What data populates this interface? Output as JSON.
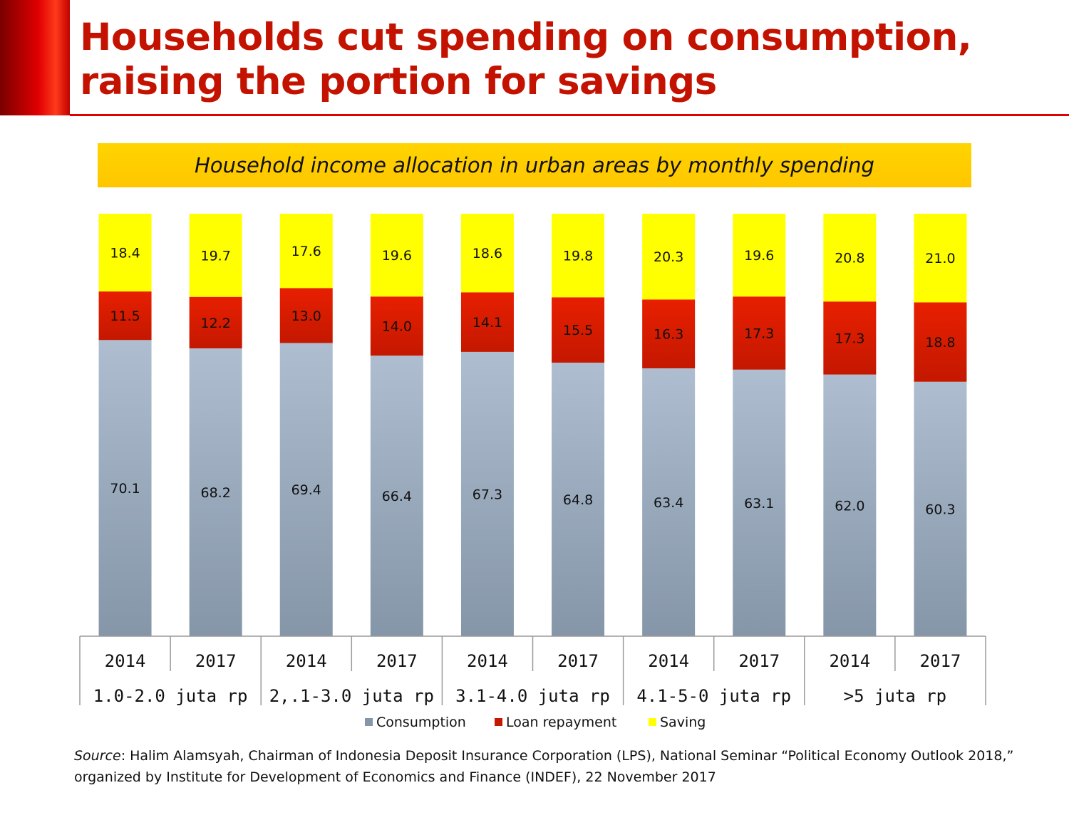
{
  "slide": {
    "title_line1": "Households cut spending on consumption,",
    "title_line2": "raising the portion for savings",
    "subtitle": "Household income allocation in urban areas by monthly spending",
    "source_label": "Source",
    "source_text": ": Halim Alamsyah, Chairman of Indonesia Deposit Insurance Corporation (LPS), National Seminar “Political Economy Outlook 2018,” organized by Institute for Development of Economics and Finance (INDEF), 22 November 2017"
  },
  "colors": {
    "title": "#c41200",
    "accent": "#e00000",
    "subtitle_band": "#ffc800",
    "consumption_top": "#aebdd0",
    "consumption_bottom": "#8596a8",
    "loan_top": "#e81f00",
    "loan_bottom": "#c41800",
    "saving": "#ffff00"
  },
  "chart_data": {
    "type": "bar",
    "stacked": true,
    "percent_stacked": true,
    "title": "Household income allocation in urban areas by monthly spending",
    "categories": [
      "2014",
      "2017",
      "2014",
      "2017",
      "2014",
      "2017",
      "2014",
      "2017",
      "2014",
      "2017"
    ],
    "groups": [
      {
        "label": "1.0-2.0 juta rp",
        "years": [
          "2014",
          "2017"
        ]
      },
      {
        "label": "2,.1-3.0 juta rp",
        "years": [
          "2014",
          "2017"
        ]
      },
      {
        "label": "3.1-4.0 juta rp",
        "years": [
          "2014",
          "2017"
        ]
      },
      {
        "label": "4.1-5-0 juta rp",
        "years": [
          "2014",
          "2017"
        ]
      },
      {
        "label": ">5 juta rp",
        "years": [
          "2014",
          "2017"
        ]
      }
    ],
    "series": [
      {
        "name": "Consumption",
        "values": [
          70.1,
          68.2,
          69.4,
          66.4,
          67.3,
          64.8,
          63.4,
          63.1,
          62.0,
          60.3
        ],
        "labels": [
          "70.1",
          "68.2",
          "69.4",
          "66.4",
          "67.3",
          "64.8",
          "63.4",
          "63.1",
          "62.0",
          "60.3"
        ]
      },
      {
        "name": "Loan repayment",
        "values": [
          11.5,
          12.2,
          13.0,
          14.0,
          14.1,
          15.5,
          16.3,
          17.3,
          17.3,
          18.8
        ],
        "labels": [
          "11.5",
          "12.2",
          "13.0",
          "14.0",
          "14.1",
          "15.5",
          "16.3",
          "17.3",
          "17.3",
          "18.8"
        ]
      },
      {
        "name": "Saving",
        "values": [
          18.4,
          19.7,
          17.6,
          19.6,
          18.6,
          19.8,
          20.3,
          19.6,
          20.8,
          21.0
        ],
        "labels": [
          "18.4",
          "19.7",
          "17.6",
          "19.6",
          "18.6",
          "19.8",
          "20.3",
          "19.6",
          "20.8",
          "21.0"
        ]
      }
    ],
    "legend": {
      "position": "bottom",
      "items": [
        "Consumption",
        "Loan repayment",
        "Saving"
      ]
    },
    "xlabel": "",
    "ylabel": "",
    "y_axis_visible": false
  }
}
